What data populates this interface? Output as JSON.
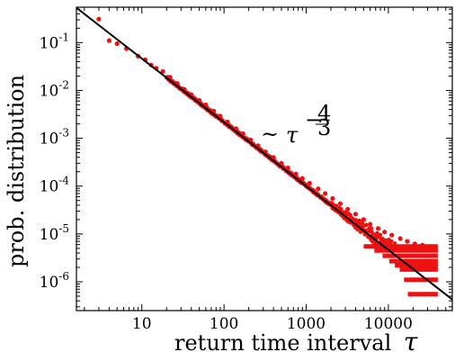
{
  "chart_data": {
    "type": "scatter",
    "title": "",
    "xlabel": "return time interval",
    "xlabel_symbol": "τ",
    "ylabel": "prob. distribution",
    "x_scale": "log",
    "y_scale": "log",
    "xlim": [
      1.6,
      60000
    ],
    "ylim": [
      2.5e-07,
      0.55
    ],
    "x_ticks": [
      {
        "value": 10,
        "label": "10"
      },
      {
        "value": 100,
        "label": "100"
      },
      {
        "value": 1000,
        "label": "1000"
      },
      {
        "value": 10000,
        "label": "10000"
      }
    ],
    "y_ticks": [
      {
        "value": 0.1,
        "base": "10",
        "exp": "-1"
      },
      {
        "value": 0.01,
        "base": "10",
        "exp": "-2"
      },
      {
        "value": 0.001,
        "base": "10",
        "exp": "-3"
      },
      {
        "value": 0.0001,
        "base": "10",
        "exp": "-4"
      },
      {
        "value": 1e-05,
        "base": "10",
        "exp": "-5"
      },
      {
        "value": 1e-06,
        "base": "10",
        "exp": "-6"
      }
    ],
    "annotation": {
      "prefix": "~",
      "base": "τ",
      "exp_sign": "−",
      "exp_num": "4",
      "exp_den": "3",
      "at": [
        320,
        0.0014
      ]
    },
    "grid": false,
    "legend": "none",
    "colors": {
      "points": "#ee1111",
      "line": "#000000"
    },
    "series": [
      {
        "kind": "points",
        "points": [
          [
            3,
            0.31
          ],
          [
            4,
            0.11
          ],
          [
            5,
            0.095
          ],
          [
            6.5,
            0.075
          ],
          [
            9,
            0.052
          ],
          [
            11,
            0.044
          ],
          [
            13,
            0.034
          ],
          [
            15,
            0.029
          ],
          [
            18,
            0.025
          ],
          [
            22,
            0.019
          ],
          [
            27,
            0.014
          ],
          [
            33,
            0.0105
          ],
          [
            40,
            0.0082
          ],
          [
            50,
            0.0062
          ],
          [
            60,
            0.005
          ],
          [
            75,
            0.0037
          ],
          [
            90,
            0.0029
          ],
          [
            110,
            0.0022
          ],
          [
            140,
            0.0016
          ],
          [
            170,
            0.00125
          ],
          [
            210,
            0.00093
          ],
          [
            260,
            0.0007
          ],
          [
            320,
            0.00052
          ],
          [
            400,
            0.0004
          ],
          [
            500,
            0.0003
          ],
          [
            600,
            0.00024
          ],
          [
            750,
            0.00018
          ],
          [
            900,
            0.000145
          ],
          [
            1100,
            0.000115
          ],
          [
            1400,
            8.8e-05
          ],
          [
            1700,
            7e-05
          ],
          [
            2100,
            5.5e-05
          ],
          [
            2600,
            4.3e-05
          ],
          [
            3200,
            3.3e-05
          ],
          [
            4000,
            2.6e-05
          ],
          [
            5000,
            2e-05
          ],
          [
            6000,
            1.6e-05
          ],
          [
            7500,
            1.3e-05
          ],
          [
            9000,
            1.1e-05
          ],
          [
            11000,
            9.5e-06
          ],
          [
            14000,
            8e-06
          ],
          [
            17000,
            7e-06
          ],
          [
            21000,
            6.2e-06
          ],
          [
            26000,
            5.8e-06
          ],
          [
            32000,
            5.5e-06
          ]
        ],
        "quantized_levels": [
          5.5e-06,
          4.5e-06,
          3.5e-06,
          2.7e-06,
          2.2e-06,
          1.8e-06,
          1.1e-06,
          5.5e-07
        ],
        "levels_x_range": [
          5000,
          40000
        ]
      },
      {
        "kind": "fit_line",
        "slope": -1.3333,
        "x_range": [
          1.6,
          60000
        ],
        "y_at_x1": 1.0
      }
    ]
  }
}
